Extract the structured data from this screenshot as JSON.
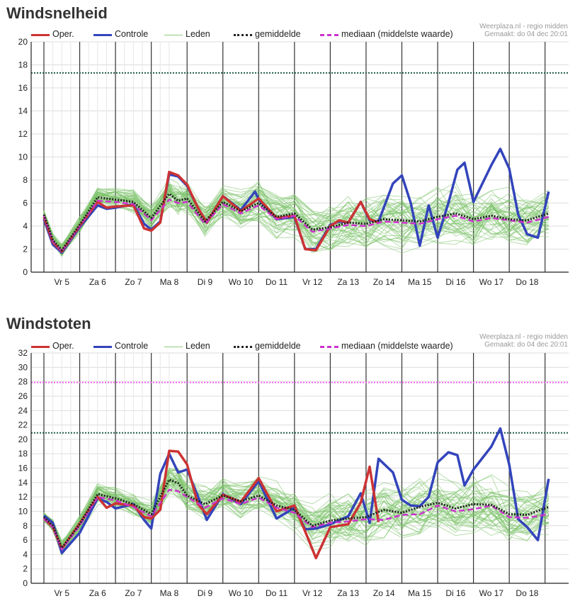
{
  "chart_data": [
    {
      "type": "line",
      "title": "Windsnelheid",
      "source": "Weerplaza.nl - regio midden",
      "created": "Gemaakt: do 04 dec 20:01",
      "ylim": [
        0,
        20
      ],
      "yticks": [
        0,
        2,
        4,
        6,
        8,
        10,
        12,
        14,
        16,
        18,
        20
      ],
      "categories": [
        "Vr 5",
        "Za 6",
        "Zo 7",
        "Ma 8",
        "Di 9",
        "Wo 10",
        "Do 11",
        "Vr 12",
        "Za 13",
        "Zo 14",
        "Ma 15",
        "Di 16",
        "Wo 17",
        "Do 18"
      ],
      "legend": [
        {
          "name": "Oper.",
          "color": "#cc3333",
          "style": "solid"
        },
        {
          "name": "Controle",
          "color": "#3344bb",
          "style": "solid"
        },
        {
          "name": "Leden",
          "color": "#8ccc7a",
          "style": "thin"
        },
        {
          "name": "gemiddelde",
          "color": "#222222",
          "style": "dotted"
        },
        {
          "name": "mediaan (middelste waarde)",
          "color": "#cc33cc",
          "style": "dashed"
        }
      ],
      "thresholds": [
        {
          "value": 17.3,
          "color": "#1f5a4a"
        }
      ],
      "x_range": [
        0,
        14.1
      ],
      "series": [
        {
          "name": "Oper.",
          "color": "#cc3333",
          "x": [
            0,
            0.25,
            0.5,
            1.0,
            1.5,
            1.75,
            2.0,
            2.5,
            2.8,
            3.0,
            3.25,
            3.5,
            3.75,
            4.0,
            4.3,
            4.55,
            5.0,
            5.5,
            6.0,
            6.5,
            7.0,
            7.3,
            7.6,
            8.0,
            8.25,
            8.5,
            8.85,
            9.1,
            9.35
          ],
          "y": [
            4.8,
            2.6,
            1.8,
            4.0,
            6.1,
            5.6,
            5.7,
            5.8,
            3.8,
            3.6,
            4.3,
            8.7,
            8.4,
            7.6,
            5.6,
            4.3,
            6.6,
            5.3,
            6.4,
            4.7,
            4.9,
            2.0,
            1.9,
            4.0,
            4.5,
            4.3,
            6.1,
            4.6,
            4.3
          ]
        },
        {
          "name": "Controle",
          "color": "#3344bb",
          "x": [
            0,
            0.25,
            0.5,
            1.0,
            1.5,
            1.75,
            2.0,
            2.5,
            2.8,
            3.0,
            3.25,
            3.5,
            3.75,
            4.0,
            4.3,
            4.55,
            5.0,
            5.5,
            5.9,
            6.0,
            6.5,
            7.0,
            7.3,
            7.6,
            8.0,
            8.25,
            8.5,
            8.85,
            9.1,
            9.35,
            9.75,
            10.0,
            10.25,
            10.5,
            10.75,
            11.0,
            11.3,
            11.55,
            11.75,
            12.0,
            12.5,
            12.75,
            13.0,
            13.25,
            13.5,
            13.8,
            14.1
          ],
          "y": [
            4.6,
            2.4,
            1.7,
            3.9,
            5.8,
            5.5,
            5.6,
            5.9,
            4.2,
            3.7,
            4.4,
            8.5,
            8.3,
            7.5,
            5.6,
            4.3,
            6.6,
            5.4,
            7.0,
            6.3,
            4.6,
            4.8,
            2.0,
            2.0,
            4.1,
            4.4,
            4.3,
            6.1,
            4.5,
            4.4,
            7.7,
            8.4,
            6.0,
            2.3,
            5.8,
            3.0,
            6.0,
            8.9,
            9.5,
            6.1,
            9.3,
            10.7,
            9.0,
            5.0,
            3.3,
            3.0,
            7.0
          ]
        },
        {
          "name": "gemiddelde",
          "color": "#222222",
          "x": [
            0,
            0.25,
            0.5,
            1.0,
            1.5,
            2.0,
            2.5,
            3.0,
            3.5,
            3.75,
            4.0,
            4.5,
            5.0,
            5.5,
            6.0,
            6.5,
            7.0,
            7.5,
            8.0,
            8.5,
            9.0,
            9.5,
            10.0,
            10.5,
            11.0,
            11.5,
            12.0,
            12.5,
            13.0,
            13.5,
            14.1
          ],
          "y": [
            5.0,
            2.8,
            1.9,
            4.1,
            6.5,
            6.3,
            6.1,
            4.7,
            6.8,
            6.2,
            6.4,
            4.4,
            6.1,
            5.3,
            6.0,
            4.8,
            5.1,
            3.7,
            3.9,
            4.3,
            4.2,
            4.6,
            4.5,
            4.4,
            4.8,
            5.1,
            4.6,
            4.9,
            4.6,
            4.5,
            5.1
          ]
        },
        {
          "name": "mediaan (middelste waarde)",
          "color": "#cc33cc",
          "x": [
            0,
            0.25,
            0.5,
            1.0,
            1.5,
            2.0,
            2.5,
            3.0,
            3.5,
            3.75,
            4.0,
            4.5,
            5.0,
            5.5,
            6.0,
            6.5,
            7.0,
            7.5,
            8.0,
            8.5,
            9.0,
            9.5,
            10.0,
            10.5,
            11.0,
            11.5,
            12.0,
            12.5,
            13.0,
            13.5,
            14.1
          ],
          "y": [
            4.9,
            2.7,
            1.8,
            4.0,
            6.2,
            6.1,
            5.9,
            4.5,
            6.3,
            6.0,
            6.1,
            4.2,
            5.9,
            5.1,
            5.8,
            4.6,
            4.9,
            3.5,
            3.8,
            4.1,
            4.0,
            4.4,
            4.3,
            4.2,
            4.6,
            4.9,
            4.4,
            4.7,
            4.5,
            4.3,
            4.8
          ]
        }
      ]
    },
    {
      "type": "line",
      "title": "Windstoten",
      "source": "Weerplaza.nl - regio midden",
      "created": "Gemaakt: do 04 dec 20:01",
      "ylim": [
        0,
        32
      ],
      "yticks": [
        0,
        2,
        4,
        6,
        8,
        10,
        12,
        14,
        16,
        18,
        20,
        22,
        24,
        26,
        28,
        30,
        32
      ],
      "categories": [
        "Vr 5",
        "Za 6",
        "Zo 7",
        "Ma 8",
        "Di 9",
        "Wo 10",
        "Do 11",
        "Vr 12",
        "Za 13",
        "Zo 14",
        "Ma 15",
        "Di 16",
        "Wo 17",
        "Do 18"
      ],
      "legend": [
        {
          "name": "Oper.",
          "color": "#cc3333",
          "style": "solid"
        },
        {
          "name": "Controle",
          "color": "#3344bb",
          "style": "solid"
        },
        {
          "name": "Leden",
          "color": "#8ccc7a",
          "style": "thin"
        },
        {
          "name": "gemiddelde",
          "color": "#222222",
          "style": "dotted"
        },
        {
          "name": "mediaan (middelste waarde)",
          "color": "#cc33cc",
          "style": "dashed"
        }
      ],
      "thresholds": [
        {
          "value": 27.9,
          "color": "#ee66ee"
        },
        {
          "value": 20.9,
          "color": "#1f5a4a"
        }
      ],
      "x_range": [
        0,
        14.1
      ],
      "series": [
        {
          "name": "Oper.",
          "color": "#cc3333",
          "x": [
            0,
            0.25,
            0.5,
            1.0,
            1.5,
            1.75,
            2.0,
            2.5,
            2.8,
            3.0,
            3.25,
            3.5,
            3.75,
            4.0,
            4.3,
            4.55,
            5.0,
            5.5,
            6.0,
            6.5,
            7.0,
            7.3,
            7.6,
            8.0,
            8.5,
            8.85,
            9.1,
            9.35
          ],
          "y": [
            9.0,
            7.8,
            4.8,
            8.3,
            12.0,
            10.5,
            11.1,
            10.8,
            9.2,
            9.0,
            10.2,
            18.4,
            18.3,
            16.5,
            11.0,
            9.6,
            12.3,
            11.3,
            14.6,
            10.0,
            10.8,
            7.2,
            3.5,
            7.8,
            8.2,
            11.2,
            16.2,
            8.5
          ]
        },
        {
          "name": "Controle",
          "color": "#3344bb",
          "x": [
            0,
            0.25,
            0.5,
            1.0,
            1.5,
            1.75,
            2.0,
            2.5,
            2.8,
            3.0,
            3.25,
            3.5,
            3.75,
            4.0,
            4.3,
            4.55,
            5.0,
            5.5,
            6.0,
            6.5,
            7.0,
            7.3,
            7.6,
            8.0,
            8.5,
            8.85,
            9.1,
            9.35,
            9.75,
            10.0,
            10.25,
            10.5,
            10.75,
            11.0,
            11.3,
            11.55,
            11.75,
            12.0,
            12.5,
            12.75,
            13.0,
            13.25,
            13.5,
            13.8,
            14.1
          ],
          "y": [
            9.4,
            8.4,
            4.2,
            7.0,
            11.8,
            11.3,
            10.4,
            11.0,
            8.8,
            7.6,
            15.2,
            18.0,
            15.4,
            15.8,
            12.1,
            8.8,
            12.4,
            11.0,
            14.2,
            9.0,
            10.5,
            7.5,
            7.6,
            8.2,
            9.3,
            12.5,
            8.4,
            17.3,
            15.4,
            11.6,
            10.8,
            10.7,
            12.0,
            16.8,
            18.2,
            17.8,
            13.6,
            15.8,
            19.0,
            21.5,
            16.5,
            8.9,
            7.8,
            6.0,
            14.5
          ]
        },
        {
          "name": "gemiddelde",
          "color": "#222222",
          "x": [
            0,
            0.25,
            0.5,
            1.0,
            1.5,
            2.0,
            2.5,
            3.0,
            3.5,
            3.75,
            4.0,
            4.5,
            5.0,
            5.5,
            6.0,
            6.5,
            7.0,
            7.5,
            8.0,
            8.5,
            9.0,
            9.5,
            10.0,
            10.5,
            11.0,
            11.5,
            12.0,
            12.5,
            13.0,
            13.5,
            14.1
          ],
          "y": [
            9.2,
            8.0,
            4.9,
            8.2,
            12.4,
            11.8,
            11.0,
            9.6,
            14.4,
            13.9,
            12.2,
            11.0,
            12.2,
            11.4,
            12.2,
            10.8,
            10.2,
            8.0,
            8.7,
            9.0,
            9.2,
            10.2,
            9.8,
            10.6,
            11.2,
            10.4,
            11.0,
            10.9,
            9.6,
            9.5,
            10.6
          ]
        },
        {
          "name": "mediaan (middelste waarde)",
          "color": "#cc33cc",
          "x": [
            0,
            0.25,
            0.5,
            1.0,
            1.5,
            2.0,
            2.5,
            3.0,
            3.5,
            3.75,
            4.0,
            4.5,
            5.0,
            5.5,
            6.0,
            6.5,
            7.0,
            7.5,
            8.0,
            8.5,
            9.0,
            9.5,
            10.0,
            10.5,
            11.0,
            11.5,
            12.0,
            12.5,
            13.0,
            13.5,
            14.1
          ],
          "y": [
            9.0,
            7.8,
            4.7,
            8.0,
            12.0,
            11.5,
            10.6,
            9.3,
            13.0,
            12.8,
            12.0,
            10.5,
            11.8,
            11.0,
            11.9,
            10.5,
            9.8,
            7.8,
            8.4,
            8.6,
            8.9,
            8.8,
            9.5,
            9.6,
            10.8,
            10.0,
            10.3,
            10.8,
            9.2,
            9.1,
            9.6
          ]
        }
      ]
    }
  ]
}
